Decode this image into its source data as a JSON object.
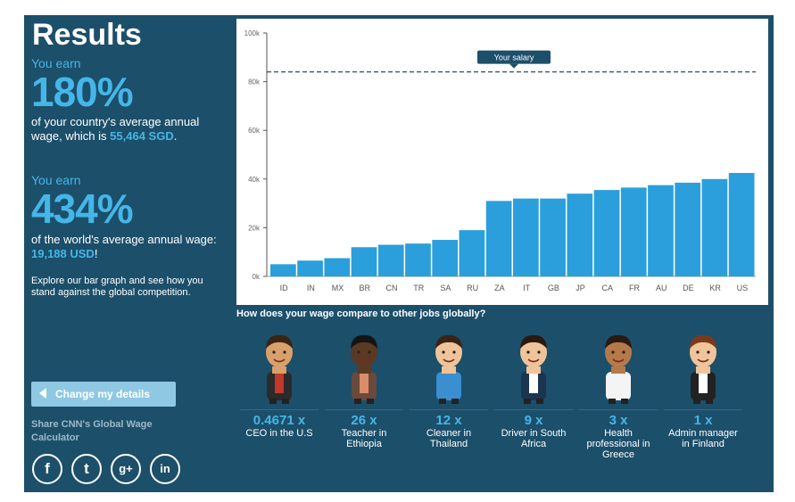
{
  "results": {
    "title": "Results",
    "earn_label_1": "You earn",
    "pct_country": "180%",
    "country_desc": "of your country's average annual wage, which is",
    "country_wage": "55,464 SGD",
    "earn_label_2": "You earn",
    "pct_world": "434%",
    "world_desc": "of the world's average annual wage:",
    "world_wage": "19,188 USD",
    "explore": "Explore our bar graph and see how you stand against the global competition."
  },
  "change_button": "Change my details",
  "share_text": "Share CNN's Global Wage Calculator",
  "social": [
    {
      "icon": "facebook-icon",
      "glyph": "f"
    },
    {
      "icon": "twitter-icon",
      "glyph": "t"
    },
    {
      "icon": "google-plus-icon",
      "glyph": "g+"
    },
    {
      "icon": "linkedin-icon",
      "glyph": "in"
    }
  ],
  "chart_data": {
    "type": "bar",
    "categories": [
      "ID",
      "IN",
      "MX",
      "BR",
      "CN",
      "TR",
      "SA",
      "RU",
      "ZA",
      "IT",
      "GB",
      "JP",
      "CA",
      "FR",
      "AU",
      "DE",
      "KR",
      "US"
    ],
    "values": [
      5000,
      6500,
      7500,
      12000,
      13000,
      13500,
      15000,
      19000,
      31000,
      32000,
      32000,
      34000,
      35500,
      36500,
      37500,
      38500,
      40000,
      42500
    ],
    "ylim": [
      0,
      100000
    ],
    "yticks": [
      "0k",
      "20k",
      "40k",
      "60k",
      "80k",
      "100k"
    ],
    "reference_line": {
      "label": "Your salary",
      "value": 84000
    },
    "bar_color": "#2b9fdb",
    "grid": false
  },
  "compare_title": "How does your wage compare to other jobs globally?",
  "jobs": [
    {
      "icon": "ceo-icon",
      "multiplier": "0.4671 x",
      "label": "CEO in the U.S",
      "skin": "#d9a06b",
      "hair": "#3a2414",
      "shirt": "#c0392b",
      "suit": "#2b2b2b"
    },
    {
      "icon": "teacher-icon",
      "multiplier": "26 x",
      "label": "Teacher in Ethiopia",
      "skin": "#5a3a22",
      "hair": "#141414",
      "shirt": "#d98c6a",
      "suit": "#6a4a3a"
    },
    {
      "icon": "cleaner-icon",
      "multiplier": "12 x",
      "label": "Cleaner in Thailand",
      "skin": "#f0c49a",
      "hair": "#3a2414",
      "shirt": "#3a8fd0",
      "suit": "#3a8fd0"
    },
    {
      "icon": "driver-icon",
      "multiplier": "9 x",
      "label": "Driver in South Africa",
      "skin": "#f0c49a",
      "hair": "#2a1a10",
      "shirt": "#ffffff",
      "suit": "#1b3550"
    },
    {
      "icon": "health-professional-icon",
      "multiplier": "3 x",
      "label": "Health professional in Greece",
      "skin": "#b57a4a",
      "hair": "#2a1a10",
      "shirt": "#f4f4f4",
      "suit": "#f4f4f4"
    },
    {
      "icon": "admin-manager-icon",
      "multiplier": "1 x",
      "label": "Admin manager in Finland",
      "skin": "#f0c49a",
      "hair": "#7a3a1a",
      "shirt": "#ffffff",
      "suit": "#222222"
    }
  ]
}
